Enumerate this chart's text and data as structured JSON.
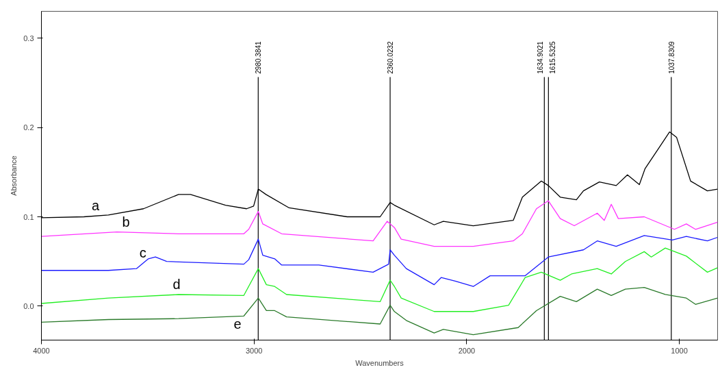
{
  "chart_data": {
    "type": "line",
    "xlabel": "Wavenumbers",
    "ylabel": "Absorbance",
    "xlim": [
      4000,
      820
    ],
    "ylim": [
      -0.038,
      0.33
    ],
    "xticks": [
      4000,
      3000,
      2000,
      1000
    ],
    "yticks": [
      {
        "value": 0,
        "label": "0.0"
      },
      {
        "value": 0.1,
        "label": "0.1"
      },
      {
        "value": 0.2,
        "label": "0.2"
      },
      {
        "value": 0.3,
        "label": "0.3"
      }
    ],
    "grid": false,
    "legend": false,
    "marker": "none",
    "line_style": "solid",
    "series": [
      {
        "name": "a",
        "color": "#000000",
        "x": [
          4000,
          3800,
          3685,
          3520,
          3355,
          3299,
          3134,
          3035,
          3002,
          2980,
          2944,
          2835,
          2562,
          2440,
          2407,
          2360,
          2340,
          2153,
          2110,
          1969,
          1781,
          1738,
          1649,
          1616,
          1560,
          1484,
          1451,
          1376,
          1297,
          1244,
          1188,
          1161,
          1099,
          1046,
          1013,
          947,
          868,
          820
        ],
        "values": [
          0.099,
          0.1,
          0.102,
          0.109,
          0.125,
          0.125,
          0.113,
          0.109,
          0.112,
          0.131,
          0.125,
          0.11,
          0.1,
          0.1,
          0.1,
          0.116,
          0.113,
          0.091,
          0.095,
          0.09,
          0.096,
          0.122,
          0.14,
          0.135,
          0.122,
          0.119,
          0.129,
          0.139,
          0.135,
          0.147,
          0.136,
          0.154,
          0.176,
          0.195,
          0.189,
          0.14,
          0.129,
          0.131
        ]
      },
      {
        "name": "b",
        "color": "#ff33ff",
        "x": [
          4000,
          3645,
          3355,
          3048,
          3025,
          2980,
          2959,
          2870,
          2440,
          2374,
          2340,
          2308,
          2153,
          1969,
          1781,
          1738,
          1672,
          1616,
          1560,
          1494,
          1386,
          1353,
          1320,
          1287,
          1165,
          1023,
          967,
          924,
          820
        ],
        "values": [
          0.078,
          0.083,
          0.081,
          0.081,
          0.086,
          0.106,
          0.092,
          0.081,
          0.073,
          0.095,
          0.088,
          0.075,
          0.067,
          0.067,
          0.073,
          0.081,
          0.109,
          0.118,
          0.098,
          0.09,
          0.104,
          0.096,
          0.114,
          0.098,
          0.1,
          0.086,
          0.092,
          0.086,
          0.094
        ]
      },
      {
        "name": "c",
        "color": "#1a1aff",
        "x": [
          4000,
          3685,
          3553,
          3497,
          3464,
          3411,
          3048,
          3025,
          2980,
          2959,
          2903,
          2870,
          2695,
          2440,
          2367,
          2360,
          2340,
          2284,
          2153,
          2120,
          2054,
          1969,
          1890,
          1725,
          1616,
          1451,
          1386,
          1297,
          1165,
          1033,
          967,
          868,
          820
        ],
        "values": [
          0.04,
          0.04,
          0.042,
          0.053,
          0.055,
          0.05,
          0.047,
          0.052,
          0.075,
          0.057,
          0.053,
          0.046,
          0.046,
          0.038,
          0.047,
          0.063,
          0.057,
          0.042,
          0.024,
          0.032,
          0.028,
          0.022,
          0.034,
          0.034,
          0.055,
          0.063,
          0.073,
          0.067,
          0.079,
          0.074,
          0.078,
          0.073,
          0.077
        ]
      },
      {
        "name": "d",
        "color": "#22ee22",
        "x": [
          4000,
          3685,
          3355,
          3048,
          2980,
          2942,
          2903,
          2847,
          2407,
          2360,
          2340,
          2308,
          2153,
          1969,
          1803,
          1725,
          1649,
          1560,
          1507,
          1386,
          1320,
          1254,
          1165,
          1132,
          1066,
          967,
          868,
          820
        ],
        "values": [
          0.003,
          0.009,
          0.013,
          0.012,
          0.042,
          0.024,
          0.022,
          0.013,
          0.005,
          0.029,
          0.022,
          0.009,
          -0.006,
          -0.006,
          0.001,
          0.032,
          0.038,
          0.029,
          0.036,
          0.042,
          0.036,
          0.05,
          0.061,
          0.055,
          0.065,
          0.056,
          0.038,
          0.043
        ]
      },
      {
        "name": "e",
        "color": "#2a7a2a",
        "x": [
          4000,
          3685,
          3355,
          3048,
          2980,
          2942,
          2903,
          2847,
          2407,
          2360,
          2340,
          2284,
          2153,
          2110,
          1969,
          1758,
          1672,
          1560,
          1484,
          1386,
          1320,
          1254,
          1165,
          1066,
          967,
          924,
          820
        ],
        "values": [
          -0.018,
          -0.015,
          -0.014,
          -0.011,
          0.009,
          -0.005,
          -0.005,
          -0.012,
          -0.02,
          0.001,
          -0.006,
          -0.016,
          -0.03,
          -0.026,
          -0.032,
          -0.024,
          -0.005,
          0.011,
          0.005,
          0.019,
          0.012,
          0.019,
          0.021,
          0.013,
          0.009,
          0.002,
          0.009
        ]
      }
    ],
    "ref_lines": [
      {
        "axis": "x",
        "value": 2980.3841,
        "label": "2980.3841",
        "color": "#000000"
      },
      {
        "axis": "x",
        "value": 2360.0232,
        "label": "2360.0232",
        "color": "#000000"
      },
      {
        "axis": "x",
        "value": 1634.9021,
        "label": "1634.9021",
        "color": "#000000"
      },
      {
        "axis": "x",
        "value": 1615.5325,
        "label": "1615.5325",
        "color": "#000000"
      },
      {
        "axis": "x",
        "value": 1037.8309,
        "label": "1037.8309",
        "color": "#000000"
      }
    ]
  }
}
